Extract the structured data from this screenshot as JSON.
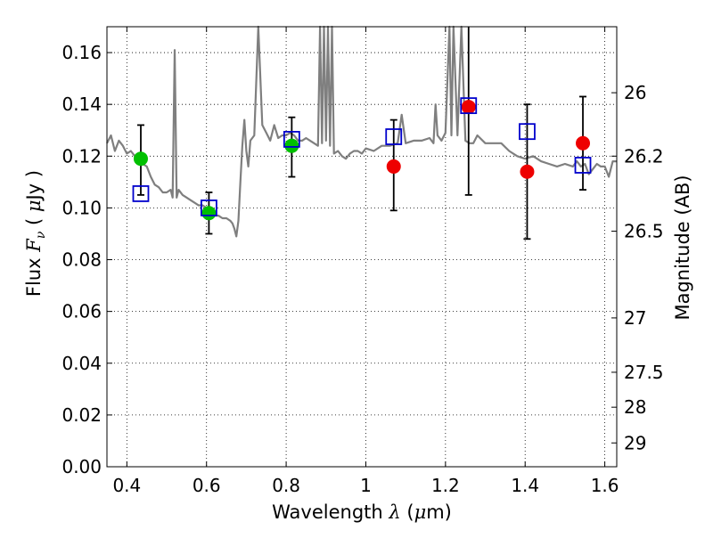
{
  "chart_data": {
    "type": "scatter",
    "xlabel": "Wavelength  λ (μm)",
    "ylabel": "Flux  Fν  ( μJy )",
    "y2label": "Magnitude (AB)",
    "xlim": [
      0.35,
      1.63
    ],
    "ylim": [
      0.0,
      0.17
    ],
    "x_ticks": [
      0.4,
      0.6,
      0.8,
      1.0,
      1.2,
      1.4,
      1.6
    ],
    "x_tick_labels": [
      "0.4",
      "0.6",
      "0.8",
      "1",
      "1.2",
      "1.4",
      "1.6"
    ],
    "y_ticks": [
      0.0,
      0.02,
      0.04,
      0.06,
      0.08,
      0.1,
      0.12,
      0.14,
      0.16
    ],
    "y_tick_labels": [
      "0.00",
      "0.02",
      "0.04",
      "0.06",
      "0.08",
      "0.10",
      "0.12",
      "0.14",
      "0.16"
    ],
    "y2_ticks": [
      {
        "label": "26",
        "flux": 0.1445
      },
      {
        "label": "26.2",
        "flux": 0.12
      },
      {
        "label": "26.5",
        "flux": 0.091
      },
      {
        "label": "27",
        "flux": 0.0575
      },
      {
        "label": "27.5",
        "flux": 0.0365
      },
      {
        "label": "28",
        "flux": 0.023
      },
      {
        "label": "29",
        "flux": 0.0092
      }
    ],
    "grid": true,
    "colors": {
      "model": "#7f7f7f",
      "green": "#00c000",
      "red": "#ee0000",
      "box": "#0000cc",
      "errorbar": "#000000",
      "grid": "#000000"
    },
    "model_spectrum": {
      "x": [
        0.35,
        0.36,
        0.37,
        0.38,
        0.39,
        0.4,
        0.41,
        0.42,
        0.43,
        0.44,
        0.45,
        0.46,
        0.47,
        0.48,
        0.49,
        0.5,
        0.51,
        0.515,
        0.52,
        0.525,
        0.53,
        0.54,
        0.55,
        0.56,
        0.57,
        0.58,
        0.59,
        0.6,
        0.61,
        0.62,
        0.63,
        0.64,
        0.65,
        0.66,
        0.665,
        0.67,
        0.675,
        0.68,
        0.685,
        0.69,
        0.695,
        0.7,
        0.705,
        0.71,
        0.72,
        0.73,
        0.74,
        0.75,
        0.76,
        0.77,
        0.78,
        0.79,
        0.8,
        0.81,
        0.82,
        0.83,
        0.84,
        0.85,
        0.86,
        0.87,
        0.88,
        0.885,
        0.89,
        0.895,
        0.9,
        0.905,
        0.91,
        0.915,
        0.92,
        0.93,
        0.94,
        0.95,
        0.96,
        0.97,
        0.98,
        0.99,
        1.0,
        1.02,
        1.04,
        1.06,
        1.08,
        1.09,
        1.1,
        1.12,
        1.14,
        1.16,
        1.17,
        1.175,
        1.18,
        1.19,
        1.2,
        1.21,
        1.215,
        1.22,
        1.23,
        1.24,
        1.25,
        1.26,
        1.27,
        1.28,
        1.3,
        1.32,
        1.34,
        1.36,
        1.38,
        1.4,
        1.42,
        1.44,
        1.46,
        1.48,
        1.5,
        1.52,
        1.53,
        1.54,
        1.55,
        1.56,
        1.57,
        1.58,
        1.59,
        1.6,
        1.61,
        1.62,
        1.63
      ],
      "y": [
        0.125,
        0.128,
        0.122,
        0.126,
        0.124,
        0.121,
        0.122,
        0.12,
        0.118,
        0.117,
        0.116,
        0.112,
        0.109,
        0.108,
        0.106,
        0.106,
        0.107,
        0.104,
        0.161,
        0.104,
        0.107,
        0.105,
        0.104,
        0.103,
        0.102,
        0.101,
        0.101,
        0.1,
        0.099,
        0.097,
        0.097,
        0.096,
        0.096,
        0.095,
        0.094,
        0.092,
        0.089,
        0.095,
        0.11,
        0.124,
        0.134,
        0.122,
        0.116,
        0.126,
        0.128,
        0.17,
        0.132,
        0.129,
        0.126,
        0.132,
        0.127,
        0.128,
        0.128,
        0.129,
        0.128,
        0.126,
        0.126,
        0.127,
        0.126,
        0.125,
        0.124,
        0.17,
        0.125,
        0.17,
        0.126,
        0.17,
        0.124,
        0.17,
        0.121,
        0.122,
        0.12,
        0.119,
        0.121,
        0.122,
        0.122,
        0.121,
        0.123,
        0.122,
        0.124,
        0.124,
        0.125,
        0.136,
        0.125,
        0.126,
        0.126,
        0.127,
        0.125,
        0.14,
        0.128,
        0.126,
        0.129,
        0.17,
        0.128,
        0.17,
        0.128,
        0.17,
        0.126,
        0.125,
        0.125,
        0.128,
        0.125,
        0.125,
        0.125,
        0.122,
        0.12,
        0.119,
        0.12,
        0.118,
        0.117,
        0.116,
        0.117,
        0.116,
        0.118,
        0.116,
        0.117,
        0.113,
        0.115,
        0.117,
        0.116,
        0.116,
        0.112,
        0.118,
        0.118
      ]
    },
    "series": [
      {
        "marker": "circle",
        "color": "#00c000",
        "x": [
          0.435,
          0.606,
          0.814
        ],
        "y": [
          0.119,
          0.098,
          0.124
        ],
        "yerr_low": [
          0.105,
          0.09,
          0.112
        ],
        "yerr_high": [
          0.132,
          0.106,
          0.135
        ]
      },
      {
        "marker": "circle",
        "color": "#ee0000",
        "x": [
          1.07,
          1.258,
          1.405,
          1.545
        ],
        "y": [
          0.116,
          0.139,
          0.114,
          0.125
        ],
        "yerr_low": [
          0.099,
          0.105,
          0.088,
          0.107
        ],
        "yerr_high": [
          0.134,
          0.175,
          0.14,
          0.143
        ]
      },
      {
        "marker": "square-open",
        "color": "#0000cc",
        "x": [
          0.435,
          0.606,
          0.814,
          1.07,
          1.258,
          1.405,
          1.545
        ],
        "y": [
          0.1055,
          0.1,
          0.1265,
          0.1275,
          0.1395,
          0.1295,
          0.1165
        ]
      }
    ]
  }
}
